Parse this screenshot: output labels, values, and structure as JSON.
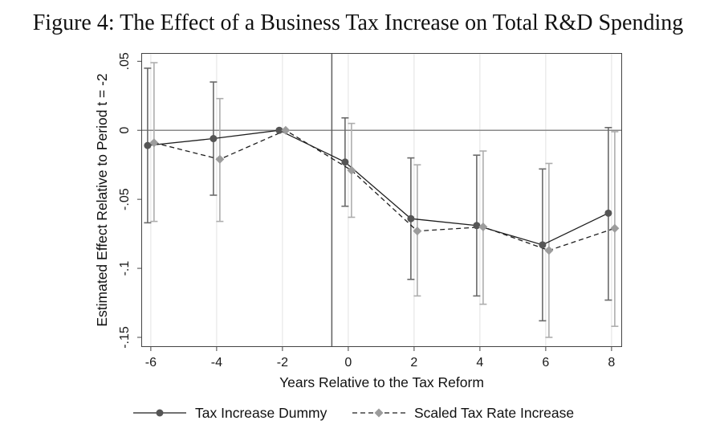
{
  "chart_data": {
    "type": "line",
    "title": "Figure 4: The Effect of a Business Tax Increase on Total R&D Spending",
    "xlabel": "Years Relative to the Tax Reform",
    "ylabel": "Estimated Effect Relative to Period t = -2",
    "x": [
      -6,
      -4,
      -2,
      0,
      2,
      4,
      6,
      8
    ],
    "xticks": [
      -6,
      -4,
      -2,
      0,
      2,
      4,
      6,
      8
    ],
    "xtick_labels": [
      "-6",
      "-4",
      "-2",
      "0",
      "2",
      "4",
      "6",
      "8"
    ],
    "yticks": [
      0.05,
      0,
      -0.05,
      -0.1,
      -0.15
    ],
    "ytick_labels": [
      ".05",
      "0",
      "-.05",
      "-.1",
      "-.15"
    ],
    "xlim": [
      -6.29,
      8.32
    ],
    "ylim": [
      -0.157,
      0.056
    ],
    "grid": "vertical",
    "legend": "bottom",
    "reference_lines": {
      "x": -0.5,
      "y": 0
    },
    "colors": {
      "frame": "#444444",
      "grid": "#e2e2e2",
      "zero_line": "#8a8a8a",
      "event_line": "#5f5f5f"
    },
    "series": [
      {
        "name": "Tax Increase Dummy",
        "line_style": "solid",
        "marker": "circle",
        "line_color": "#1f1f1f",
        "marker_color": "#555555",
        "ci_color": "#6a6a6a",
        "values": [
          -0.011,
          -0.006,
          0,
          -0.023,
          -0.064,
          -0.069,
          -0.083,
          -0.06
        ],
        "ci_upper": [
          0.045,
          0.035,
          null,
          0.009,
          -0.02,
          -0.018,
          -0.028,
          0.002
        ],
        "ci_lower": [
          -0.067,
          -0.047,
          null,
          -0.055,
          -0.108,
          -0.12,
          -0.138,
          -0.123
        ]
      },
      {
        "name": "Scaled Tax Rate Increase",
        "line_style": "dashed",
        "marker": "diamond",
        "line_color": "#1f1f1f",
        "marker_color": "#9c9c9c",
        "ci_color": "#adadad",
        "values": [
          -0.009,
          -0.021,
          0,
          -0.029,
          -0.073,
          -0.07,
          -0.087,
          -0.071
        ],
        "ci_upper": [
          0.049,
          0.023,
          null,
          0.005,
          -0.025,
          -0.015,
          -0.024,
          -0.001
        ],
        "ci_lower": [
          -0.066,
          -0.066,
          null,
          -0.063,
          -0.12,
          -0.126,
          -0.15,
          -0.142
        ]
      }
    ]
  }
}
